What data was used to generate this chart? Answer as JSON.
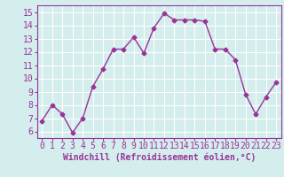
{
  "x": [
    0,
    1,
    2,
    3,
    4,
    5,
    6,
    7,
    8,
    9,
    10,
    11,
    12,
    13,
    14,
    15,
    16,
    17,
    18,
    19,
    20,
    21,
    22,
    23
  ],
  "y": [
    6.8,
    8.0,
    7.3,
    5.9,
    7.0,
    9.4,
    10.7,
    12.2,
    12.2,
    13.1,
    11.9,
    13.8,
    14.9,
    14.4,
    14.4,
    14.4,
    14.3,
    12.2,
    12.2,
    11.4,
    8.8,
    7.3,
    8.6,
    9.7
  ],
  "line_color": "#993399",
  "marker": "D",
  "marker_size": 2.5,
  "bg_color": "#d4eeed",
  "grid_color": "#ffffff",
  "xlabel": "Windchill (Refroidissement éolien,°C)",
  "xlabel_fontsize": 7.0,
  "xtick_labels": [
    "0",
    "1",
    "2",
    "3",
    "4",
    "5",
    "6",
    "7",
    "8",
    "9",
    "10",
    "11",
    "12",
    "13",
    "14",
    "15",
    "16",
    "17",
    "18",
    "19",
    "20",
    "21",
    "22",
    "23"
  ],
  "ytick_values": [
    6,
    7,
    8,
    9,
    10,
    11,
    12,
    13,
    14,
    15
  ],
  "ylim": [
    5.5,
    15.5
  ],
  "xlim": [
    -0.5,
    23.5
  ],
  "tick_fontsize": 7,
  "line_width": 1.0
}
